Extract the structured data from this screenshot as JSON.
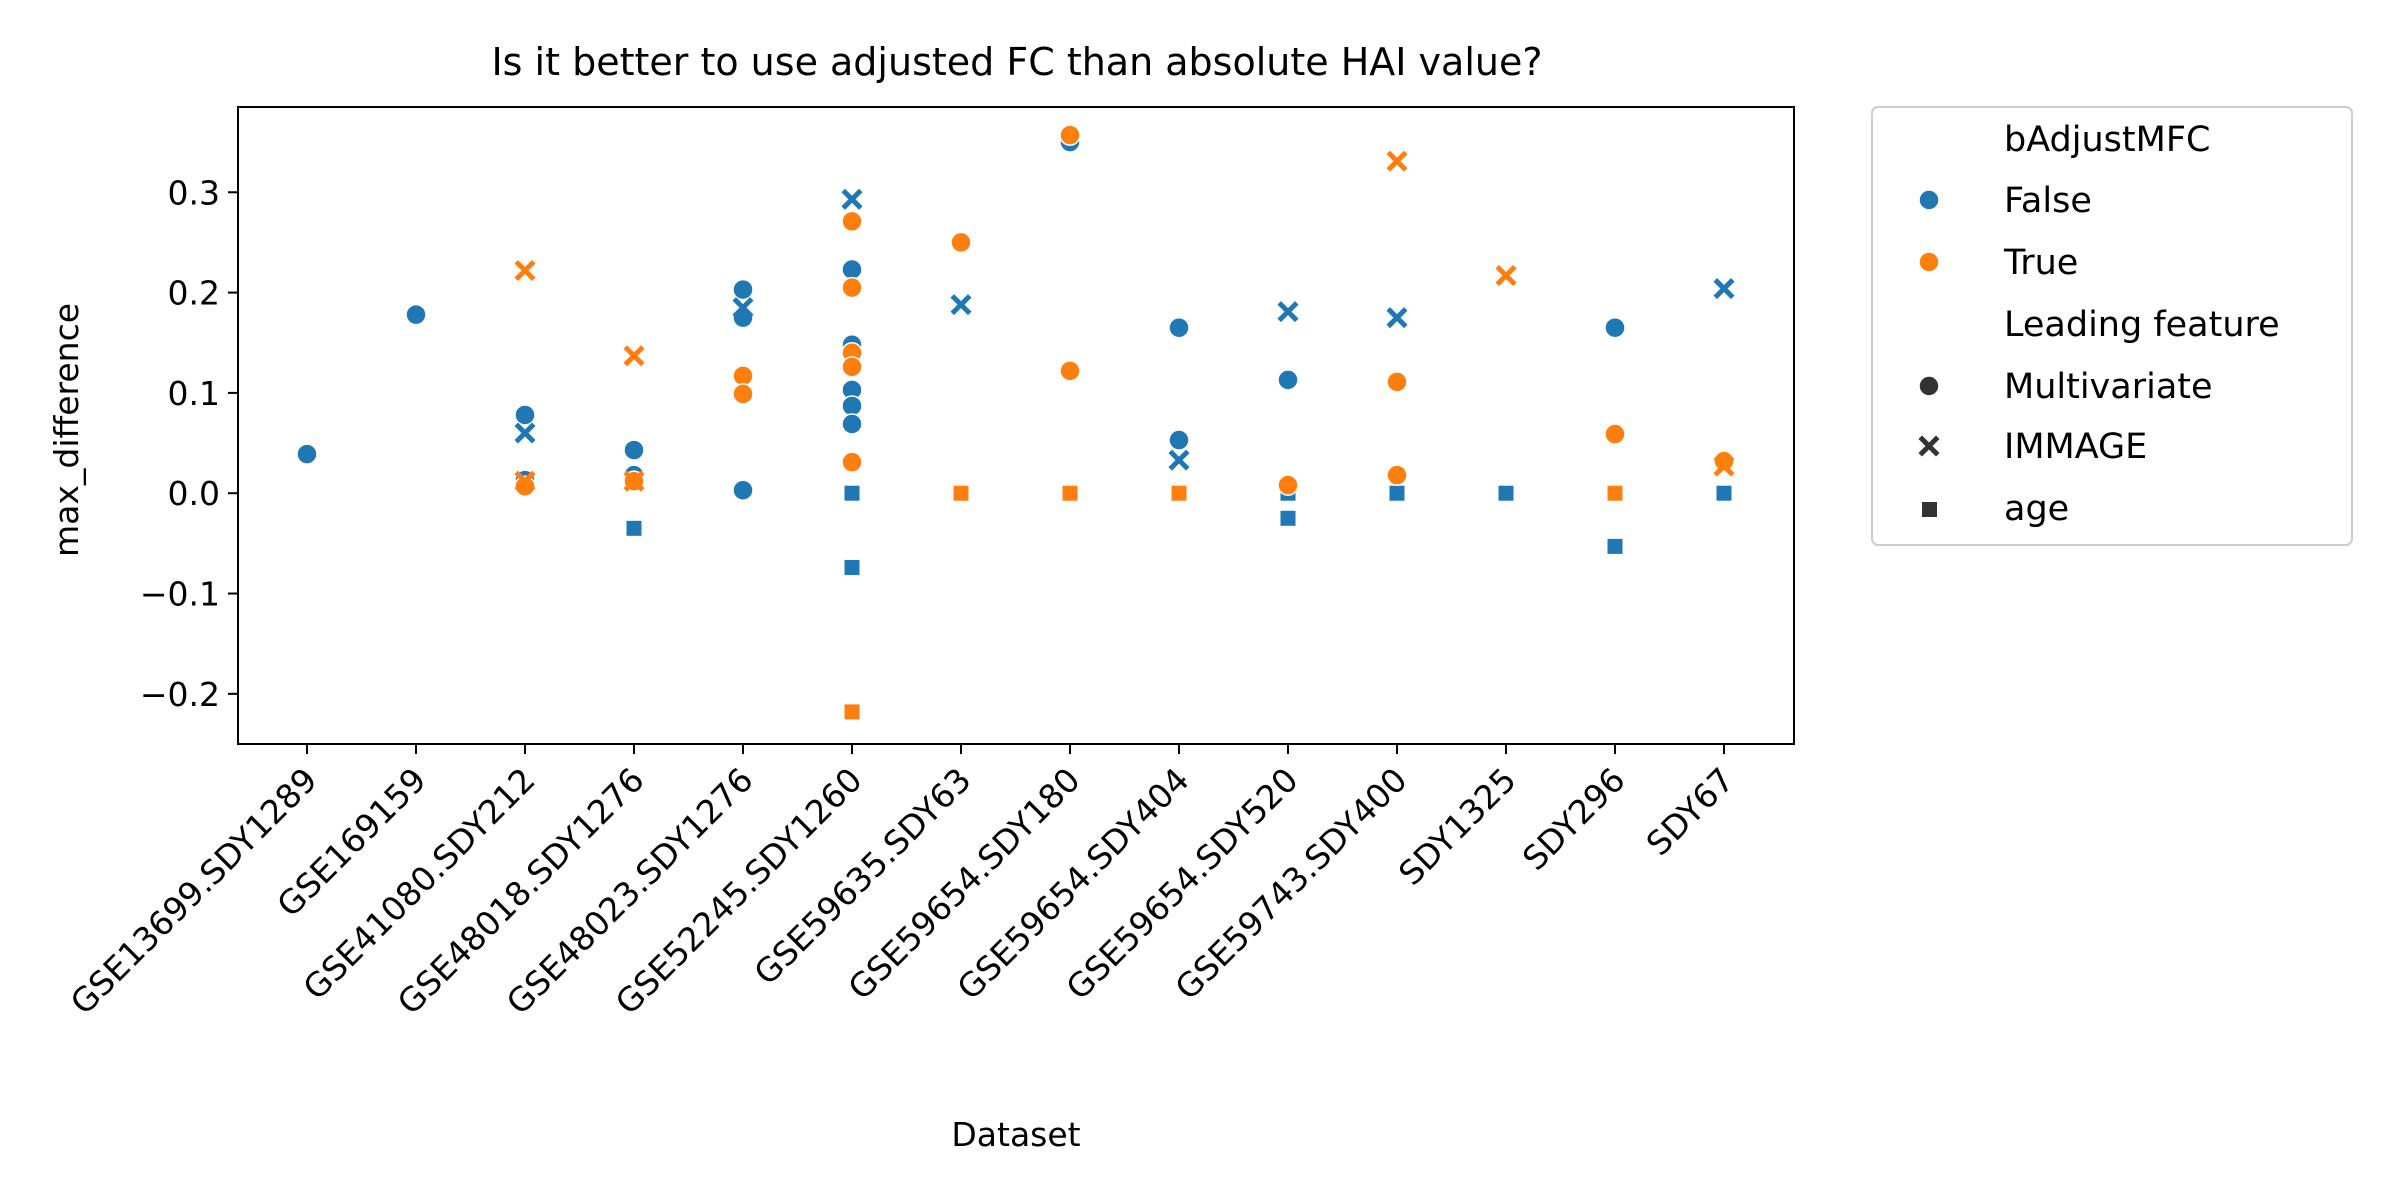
{
  "chart_data": {
    "type": "scatter",
    "title": "Is it better to use adjusted FC than absolute HAI value?",
    "xlabel": "Dataset",
    "ylabel": "max_difference",
    "categories": [
      "GSE13699.SDY1289",
      "GSE169159",
      "GSE41080.SDY212",
      "GSE48018.SDY1276",
      "GSE48023.SDY1276",
      "GSE52245.SDY1260",
      "GSE59635.SDY63",
      "GSE59654.SDY180",
      "GSE59654.SDY404",
      "GSE59654.SDY520",
      "GSE59743.SDY400",
      "SDY1325",
      "SDY296",
      "SDY67"
    ],
    "ylim": [
      -0.25,
      0.385
    ],
    "yticks": [
      -0.2,
      -0.1,
      0.0,
      0.1,
      0.2,
      0.3
    ],
    "ytick_labels": [
      "−0.2",
      "−0.1",
      "0.0",
      "0.1",
      "0.2",
      "0.3"
    ],
    "grid": false,
    "legend_placement": "outside upper right",
    "colors": {
      "False": "#1f77b4",
      "True": "#ff7f0e"
    },
    "legend": {
      "hue_title": "bAdjustMFC",
      "hue_entries": [
        "False",
        "True"
      ],
      "style_title": "Leading feature",
      "style_entries": [
        "Multivariate",
        "IMMAGE",
        "age"
      ]
    },
    "series": [
      {
        "hue": "False",
        "style": "Multivariate",
        "points": [
          {
            "x": "GSE13699.SDY1289",
            "y": 0.039
          },
          {
            "x": "GSE169159",
            "y": 0.178
          },
          {
            "x": "GSE41080.SDY212",
            "y": 0.078
          },
          {
            "x": "GSE41080.SDY212",
            "y": 0.013
          },
          {
            "x": "GSE48018.SDY1276",
            "y": 0.043
          },
          {
            "x": "GSE48018.SDY1276",
            "y": 0.018
          },
          {
            "x": "GSE48023.SDY1276",
            "y": 0.203
          },
          {
            "x": "GSE48023.SDY1276",
            "y": 0.175
          },
          {
            "x": "GSE48023.SDY1276",
            "y": 0.003
          },
          {
            "x": "GSE52245.SDY1260",
            "y": 0.223
          },
          {
            "x": "GSE52245.SDY1260",
            "y": 0.148
          },
          {
            "x": "GSE52245.SDY1260",
            "y": 0.103
          },
          {
            "x": "GSE52245.SDY1260",
            "y": 0.087
          },
          {
            "x": "GSE52245.SDY1260",
            "y": 0.069
          },
          {
            "x": "GSE59635.SDY63",
            "y": 0.25
          },
          {
            "x": "GSE59654.SDY180",
            "y": 0.35
          },
          {
            "x": "GSE59654.SDY404",
            "y": 0.165
          },
          {
            "x": "GSE59654.SDY404",
            "y": 0.053
          },
          {
            "x": "GSE59654.SDY520",
            "y": 0.113
          },
          {
            "x": "SDY296",
            "y": 0.165
          }
        ]
      },
      {
        "hue": "False",
        "style": "IMMAGE",
        "points": [
          {
            "x": "GSE41080.SDY212",
            "y": 0.06
          },
          {
            "x": "GSE48023.SDY1276",
            "y": 0.185
          },
          {
            "x": "GSE52245.SDY1260",
            "y": 0.293
          },
          {
            "x": "GSE59635.SDY63",
            "y": 0.188
          },
          {
            "x": "GSE59654.SDY404",
            "y": 0.033
          },
          {
            "x": "GSE59654.SDY520",
            "y": 0.181
          },
          {
            "x": "GSE59743.SDY400",
            "y": 0.175
          },
          {
            "x": "SDY67",
            "y": 0.204
          }
        ]
      },
      {
        "hue": "False",
        "style": "age",
        "points": [
          {
            "x": "GSE48018.SDY1276",
            "y": -0.035
          },
          {
            "x": "GSE52245.SDY1260",
            "y": 0.0
          },
          {
            "x": "GSE52245.SDY1260",
            "y": -0.074
          },
          {
            "x": "GSE59654.SDY520",
            "y": 0.0
          },
          {
            "x": "GSE59654.SDY520",
            "y": -0.025
          },
          {
            "x": "GSE59743.SDY400",
            "y": 0.0
          },
          {
            "x": "SDY1325",
            "y": 0.0
          },
          {
            "x": "SDY296",
            "y": -0.053
          },
          {
            "x": "SDY67",
            "y": 0.0
          }
        ]
      },
      {
        "hue": "True",
        "style": "Multivariate",
        "points": [
          {
            "x": "GSE41080.SDY212",
            "y": 0.007
          },
          {
            "x": "GSE48018.SDY1276",
            "y": 0.012
          },
          {
            "x": "GSE48023.SDY1276",
            "y": 0.117
          },
          {
            "x": "GSE48023.SDY1276",
            "y": 0.099
          },
          {
            "x": "GSE52245.SDY1260",
            "y": 0.271
          },
          {
            "x": "GSE52245.SDY1260",
            "y": 0.205
          },
          {
            "x": "GSE52245.SDY1260",
            "y": 0.14
          },
          {
            "x": "GSE52245.SDY1260",
            "y": 0.126
          },
          {
            "x": "GSE52245.SDY1260",
            "y": 0.031
          },
          {
            "x": "GSE59635.SDY63",
            "y": 0.25
          },
          {
            "x": "GSE59654.SDY180",
            "y": 0.357
          },
          {
            "x": "GSE59654.SDY180",
            "y": 0.122
          },
          {
            "x": "GSE59654.SDY520",
            "y": 0.008
          },
          {
            "x": "GSE59743.SDY400",
            "y": 0.111
          },
          {
            "x": "GSE59743.SDY400",
            "y": 0.018
          },
          {
            "x": "SDY296",
            "y": 0.059
          },
          {
            "x": "SDY67",
            "y": 0.032
          }
        ]
      },
      {
        "hue": "True",
        "style": "IMMAGE",
        "points": [
          {
            "x": "GSE41080.SDY212",
            "y": 0.222
          },
          {
            "x": "GSE41080.SDY212",
            "y": 0.012
          },
          {
            "x": "GSE48018.SDY1276",
            "y": 0.137
          },
          {
            "x": "GSE48018.SDY1276",
            "y": 0.012
          },
          {
            "x": "GSE59743.SDY400",
            "y": 0.331
          },
          {
            "x": "SDY1325",
            "y": 0.217
          },
          {
            "x": "SDY67",
            "y": 0.027
          }
        ]
      },
      {
        "hue": "True",
        "style": "age",
        "points": [
          {
            "x": "GSE52245.SDY1260",
            "y": -0.218
          },
          {
            "x": "GSE59635.SDY63",
            "y": 0.0
          },
          {
            "x": "GSE59654.SDY180",
            "y": 0.0
          },
          {
            "x": "GSE59654.SDY404",
            "y": 0.0
          },
          {
            "x": "SDY296",
            "y": 0.0
          }
        ]
      }
    ]
  }
}
